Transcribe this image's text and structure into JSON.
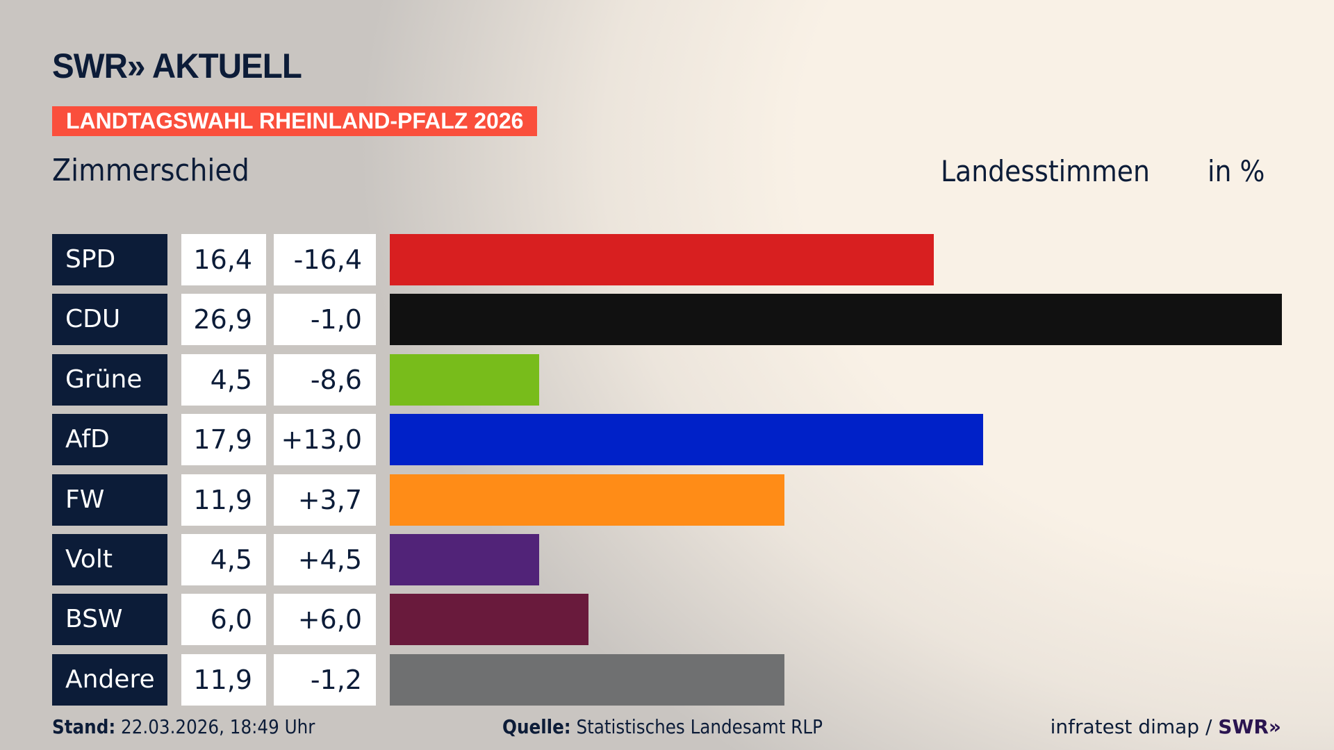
{
  "header": {
    "logo": "SWR» AKTUELL",
    "banner": "LANDTAGSWAHL RHEINLAND-PFALZ 2026",
    "place": "Zimmerschied",
    "measure": "Landesstimmen",
    "unit": "in %"
  },
  "chart_data": {
    "type": "bar",
    "orientation": "horizontal",
    "title": "Landesstimmen",
    "unit": "in %",
    "categories": [
      "SPD",
      "CDU",
      "Grüne",
      "AfD",
      "FW",
      "Volt",
      "BSW",
      "Andere"
    ],
    "values": [
      16.4,
      26.9,
      4.5,
      17.9,
      11.9,
      4.5,
      6.0,
      11.9
    ],
    "value_labels": [
      "16,4",
      "26,9",
      "4,5",
      "17,9",
      "11,9",
      "4,5",
      "6,0",
      "11,9"
    ],
    "diff_labels": [
      "-16,4",
      "-1,0",
      "-8,6",
      "+13,0",
      "+3,7",
      "+4,5",
      "+6,0",
      "-1,2"
    ],
    "colors": [
      "#d81f20",
      "#111111",
      "#78bc1b",
      "#0021c8",
      "#ff8c17",
      "#512378",
      "#691a3c",
      "#6f7071"
    ]
  },
  "footer": {
    "stand_label": "Stand:",
    "stand_value": "22.03.2026, 18:49 Uhr",
    "source_label": "Quelle:",
    "source_value": "Statistisches Landesamt RLP",
    "credit": "infratest dimap / ",
    "credit_logo": "SWR»"
  }
}
